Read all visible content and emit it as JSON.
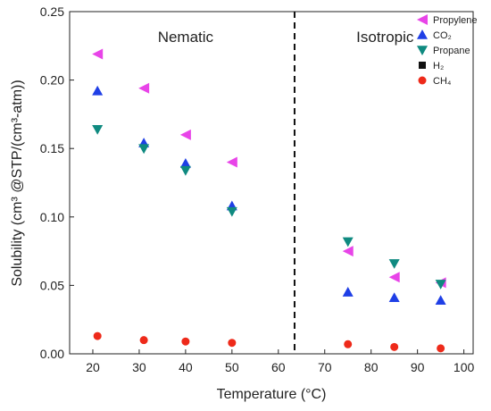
{
  "chart_data": {
    "type": "scatter",
    "title": "",
    "xlabel": "Temperature (°C)",
    "ylabel": "Solubility (cm³ @STP/(cm³-atm))",
    "xlim": [
      15,
      102
    ],
    "ylim": [
      0,
      0.25
    ],
    "xticks": [
      20,
      30,
      40,
      50,
      60,
      70,
      80,
      90,
      100
    ],
    "yticks": [
      0.0,
      0.05,
      0.1,
      0.15,
      0.2,
      0.25
    ],
    "ytick_labels": [
      "0.00",
      "0.05",
      "0.10",
      "0.15",
      "0.20",
      "0.25"
    ],
    "grid": false,
    "legend_position": "top-right",
    "divider": {
      "x": 63.5,
      "style": "dashed"
    },
    "regions": [
      {
        "label": "Nematic",
        "x": 40
      },
      {
        "label": "Isotropic",
        "x": 83
      }
    ],
    "series": [
      {
        "name": "Propylene",
        "marker": "triangle-left",
        "color": "#e844e8",
        "x": [
          21,
          31,
          40,
          50,
          75,
          85,
          95
        ],
        "y": [
          0.219,
          0.194,
          0.16,
          0.14,
          0.075,
          0.056,
          0.052
        ]
      },
      {
        "name": "CO₂",
        "marker": "triangle-up",
        "color": "#1f3fe6",
        "x": [
          21,
          31,
          40,
          50,
          75,
          85,
          95
        ],
        "y": [
          0.192,
          0.154,
          0.139,
          0.108,
          0.045,
          0.041,
          0.039
        ]
      },
      {
        "name": "Propane",
        "marker": "triangle-down",
        "color": "#0f8a80",
        "x": [
          21,
          31,
          40,
          50,
          75,
          85,
          95
        ],
        "y": [
          0.164,
          0.15,
          0.134,
          0.104,
          0.082,
          0.066,
          0.051
        ]
      },
      {
        "name": "H₂",
        "marker": "square",
        "color": "#111111",
        "x": [],
        "y": []
      },
      {
        "name": "CH₄",
        "marker": "circle",
        "color": "#ee2a1a",
        "x": [
          21,
          31,
          40,
          50,
          75,
          85,
          95
        ],
        "y": [
          0.013,
          0.01,
          0.009,
          0.008,
          0.007,
          0.005,
          0.004
        ]
      }
    ]
  }
}
